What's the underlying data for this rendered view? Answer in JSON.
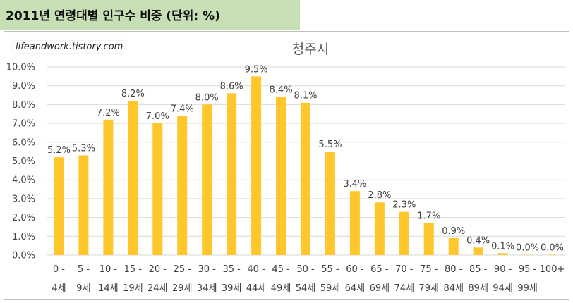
{
  "header": {
    "title": "2011년 연령대별 인구수 비중 (단위: %)"
  },
  "watermark": "lifeandwork.tistory.com",
  "colors": {
    "bar": "#ffc72c",
    "header_bg": "#c6dfb5",
    "grid": "#d9d9d9"
  },
  "chart_data": {
    "type": "bar",
    "title": "청주시",
    "categories": [
      "0 - 4세",
      "5 - 9세",
      "10 - 14세",
      "15 - 19세",
      "20 - 24세",
      "25 - 29세",
      "30 - 34세",
      "35 - 39세",
      "40 - 44세",
      "45 - 49세",
      "50 - 54세",
      "55 - 59세",
      "60 - 64세",
      "65 - 69세",
      "70 - 74세",
      "75 - 79세",
      "80 - 84세",
      "85 - 89세",
      "90 - 94세",
      "95 - 99세",
      "100+"
    ],
    "category_lines": [
      [
        "0 -",
        "4세"
      ],
      [
        "5 -",
        "9세"
      ],
      [
        "10 -",
        "14세"
      ],
      [
        "15 -",
        "19세"
      ],
      [
        "20 -",
        "24세"
      ],
      [
        "25 -",
        "29세"
      ],
      [
        "30 -",
        "34세"
      ],
      [
        "35 -",
        "39세"
      ],
      [
        "40 -",
        "44세"
      ],
      [
        "45 -",
        "49세"
      ],
      [
        "50 -",
        "54세"
      ],
      [
        "55 -",
        "59세"
      ],
      [
        "60 -",
        "64세"
      ],
      [
        "65 -",
        "69세"
      ],
      [
        "70 -",
        "74세"
      ],
      [
        "75 -",
        "79세"
      ],
      [
        "80 -",
        "84세"
      ],
      [
        "85 -",
        "89세"
      ],
      [
        "90 -",
        "94세"
      ],
      [
        "95 -",
        "99세"
      ],
      [
        "100+",
        ""
      ]
    ],
    "values": [
      5.2,
      5.3,
      7.2,
      8.2,
      7.0,
      7.4,
      8.0,
      8.6,
      9.5,
      8.4,
      8.1,
      5.5,
      3.4,
      2.8,
      2.3,
      1.7,
      0.9,
      0.4,
      0.1,
      0.02,
      0.01
    ],
    "data_labels": [
      "5.2%",
      "5.3%",
      "7.2%",
      "8.2%",
      "7.0%",
      "7.4%",
      "8.0%",
      "8.6%",
      "9.5%",
      "8.4%",
      "8.1%",
      "5.5%",
      "3.4%",
      "2.8%",
      "2.3%",
      "1.7%",
      "0.9%",
      "0.4%",
      "0.1%",
      "0.0%",
      "0.0%"
    ],
    "y_ticks": [
      "0.0%",
      "1.0%",
      "2.0%",
      "3.0%",
      "4.0%",
      "5.0%",
      "6.0%",
      "7.0%",
      "8.0%",
      "9.0%",
      "10.0%"
    ],
    "ylim": [
      0,
      10
    ],
    "grid": true,
    "legend": "none"
  }
}
